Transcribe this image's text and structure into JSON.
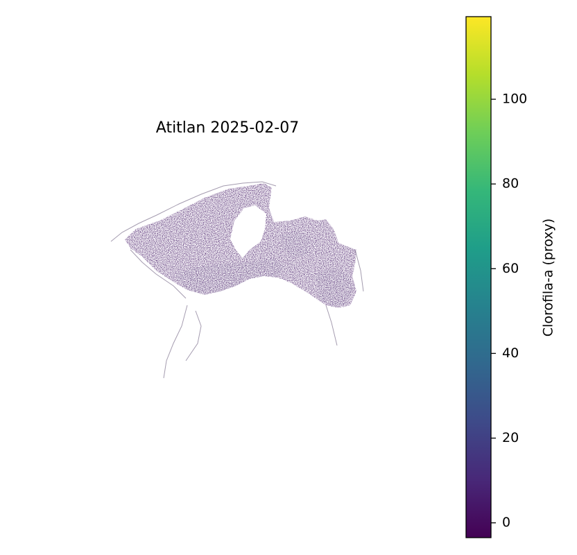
{
  "title": "Atitlan 2025-02-07",
  "colorbar": {
    "label": "Clorofila-a (proxy)",
    "vmin": -3.5,
    "vmax": 119.5,
    "ticks": [
      0,
      20,
      40,
      60,
      80,
      100
    ],
    "tick_labels": [
      "0",
      "20",
      "40",
      "60",
      "80",
      "100"
    ],
    "colormap": "viridis",
    "colormap_stops": [
      "#440154",
      "#482878",
      "#3e4a89",
      "#31688e",
      "#26828e",
      "#1f9e89",
      "#35b779",
      "#6ece58",
      "#b5de2b",
      "#fde725"
    ]
  },
  "map": {
    "description_value_range": "mostly 0-15",
    "dominant_color": "#3b0f5e",
    "light_region_color": "#8e86a8"
  }
}
